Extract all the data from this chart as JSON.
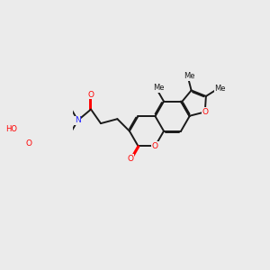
{
  "bg_color": "#ebebeb",
  "bond_color": "#1a1a1a",
  "oxygen_color": "#ff0000",
  "nitrogen_color": "#2020ff",
  "lw": 1.4,
  "dbo": 0.055,
  "figsize": [
    3.0,
    3.0
  ],
  "dpi": 100,
  "xlim": [
    0,
    10
  ],
  "ylim": [
    0,
    10
  ]
}
